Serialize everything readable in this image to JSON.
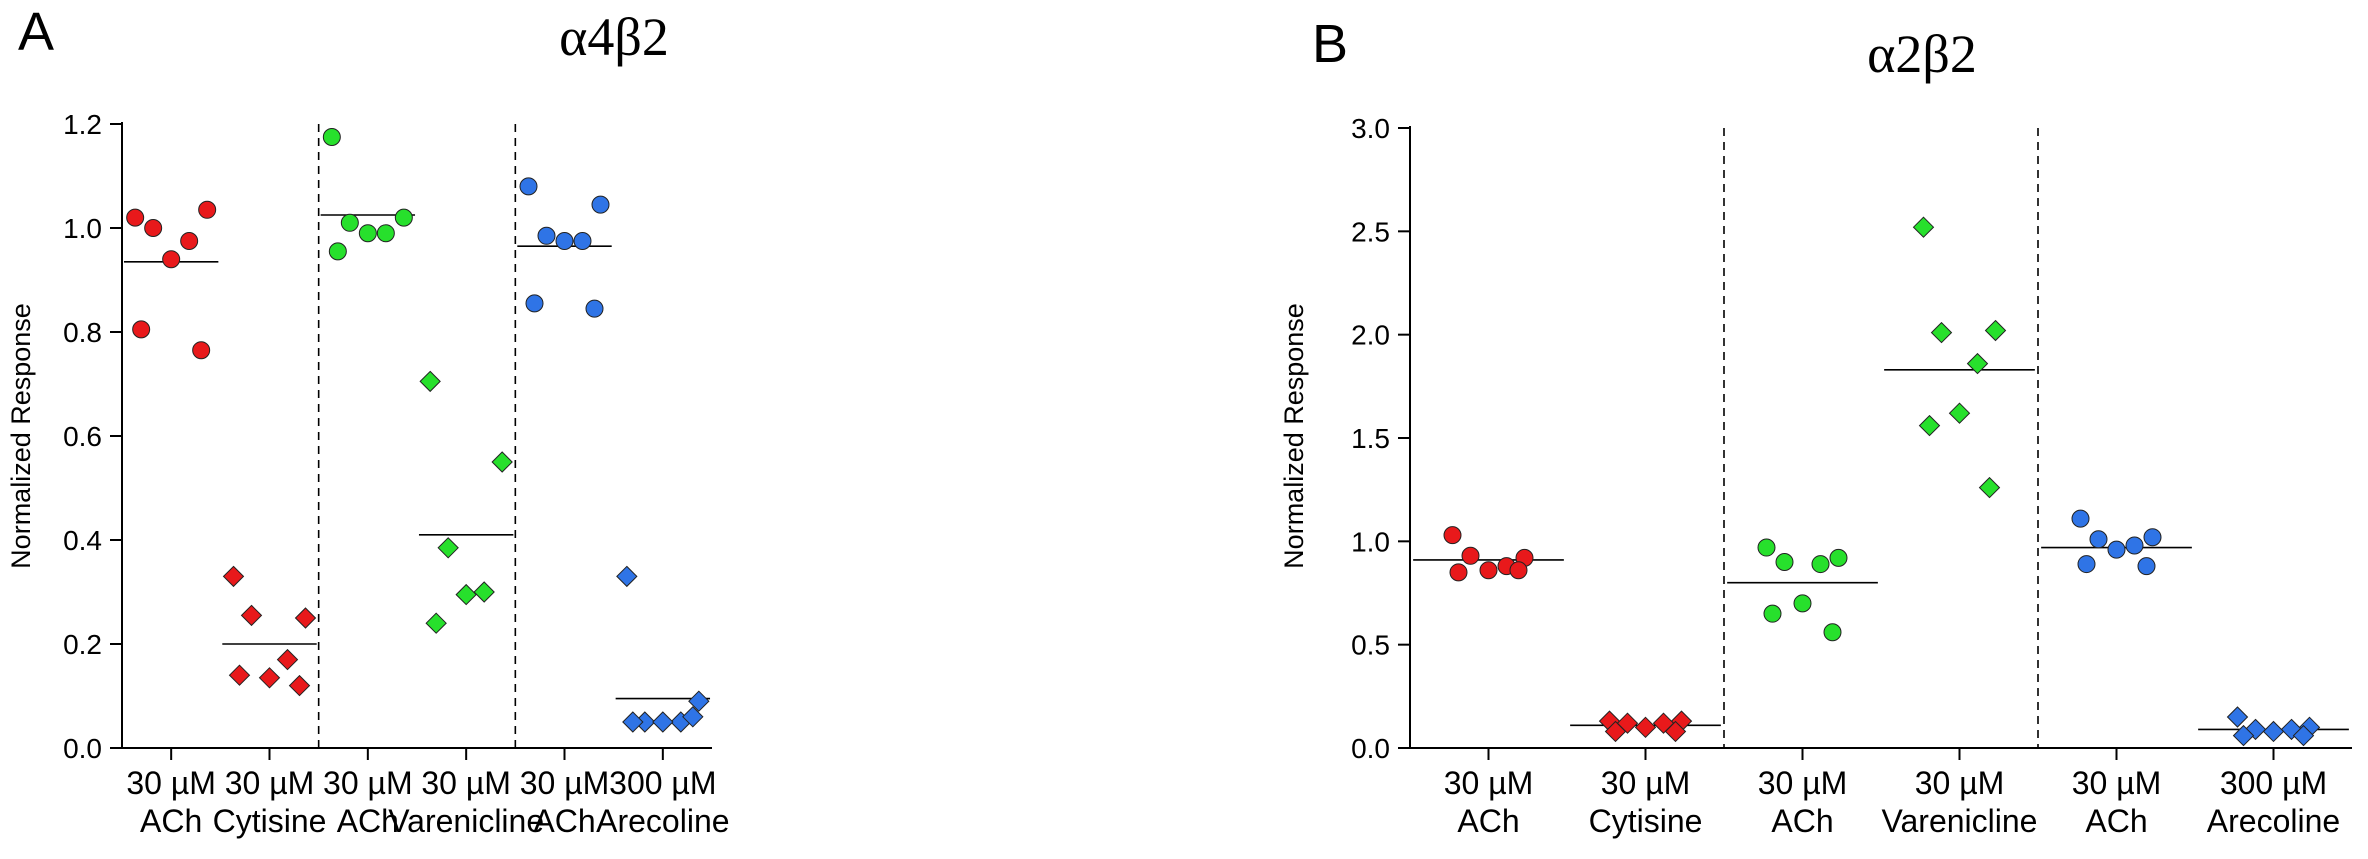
{
  "chart_data": [
    {
      "type": "scatter",
      "panel_label": "A",
      "title": "α4β2",
      "ylabel": "Normalized Response",
      "xlabel": "",
      "ylim": [
        0,
        1.2
      ],
      "yticks": [
        "0.0",
        "0.2",
        "0.4",
        "0.6",
        "0.8",
        "1.0",
        "1.2"
      ],
      "grid": false,
      "colors": {
        "red": "#e8191b",
        "green": "#27e02c",
        "blue": "#2f74e6"
      },
      "groups": [
        {
          "label1": "30 µM",
          "label2": "ACh",
          "marker": "circle",
          "color": "red",
          "values": [
            1.02,
            1.035,
            1.0,
            0.975,
            0.94,
            0.805,
            0.765
          ],
          "mean": 0.935
        },
        {
          "label1": "30 µM",
          "label2": "Cytisine",
          "marker": "diamond",
          "color": "red",
          "values": [
            0.33,
            0.25,
            0.255,
            0.17,
            0.135,
            0.14,
            0.12
          ],
          "mean": 0.2
        },
        {
          "label1": "30 µM",
          "label2": "ACh",
          "marker": "circle",
          "color": "green",
          "values": [
            1.175,
            1.02,
            1.01,
            0.99,
            0.99,
            0.955
          ],
          "mean": 1.025
        },
        {
          "label1": "30 µM",
          "label2": "Varenicline",
          "marker": "diamond",
          "color": "green",
          "values": [
            0.705,
            0.55,
            0.385,
            0.3,
            0.295,
            0.24
          ],
          "mean": 0.41
        },
        {
          "label1": "30 µM",
          "label2": "ACh",
          "marker": "circle",
          "color": "blue",
          "values": [
            1.08,
            1.045,
            0.985,
            0.975,
            0.975,
            0.855,
            0.845
          ],
          "mean": 0.965
        },
        {
          "label1": "300 µM",
          "label2": "Arecoline",
          "marker": "diamond",
          "color": "blue",
          "values": [
            0.33,
            0.09,
            0.05,
            0.05,
            0.05,
            0.05,
            0.06
          ],
          "mean": 0.095
        }
      ]
    },
    {
      "type": "scatter",
      "panel_label": "B",
      "title": "α2β2",
      "ylabel": "Normalized Response",
      "xlabel": "",
      "ylim": [
        0,
        3.0
      ],
      "yticks": [
        "0.0",
        "0.5",
        "1.0",
        "1.5",
        "2.0",
        "2.5",
        "3.0"
      ],
      "grid": false,
      "colors": {
        "red": "#e8191b",
        "green": "#27e02c",
        "blue": "#2f74e6"
      },
      "groups": [
        {
          "label1": "30 µM",
          "label2": "ACh",
          "marker": "circle",
          "color": "red",
          "values": [
            1.03,
            0.92,
            0.93,
            0.88,
            0.86,
            0.85,
            0.86
          ],
          "mean": 0.91
        },
        {
          "label1": "30 µM",
          "label2": "Cytisine",
          "marker": "diamond",
          "color": "red",
          "values": [
            0.13,
            0.13,
            0.12,
            0.12,
            0.1,
            0.08,
            0.08
          ],
          "mean": 0.11
        },
        {
          "label1": "30 µM",
          "label2": "ACh",
          "marker": "circle",
          "color": "green",
          "values": [
            0.97,
            0.92,
            0.9,
            0.89,
            0.7,
            0.65,
            0.56
          ],
          "mean": 0.8
        },
        {
          "label1": "30 µM",
          "label2": "Varenicline",
          "marker": "diamond",
          "color": "green",
          "values": [
            2.52,
            2.02,
            2.01,
            1.86,
            1.62,
            1.56,
            1.26
          ],
          "mean": 1.83
        },
        {
          "label1": "30 µM",
          "label2": "ACh",
          "marker": "circle",
          "color": "blue",
          "values": [
            1.11,
            1.02,
            1.01,
            0.98,
            0.96,
            0.89,
            0.88
          ],
          "mean": 0.97
        },
        {
          "label1": "300 µM",
          "label2": "Arecoline",
          "marker": "diamond",
          "color": "blue",
          "values": [
            0.15,
            0.1,
            0.09,
            0.09,
            0.08,
            0.06,
            0.06
          ],
          "mean": 0.09
        }
      ]
    }
  ]
}
